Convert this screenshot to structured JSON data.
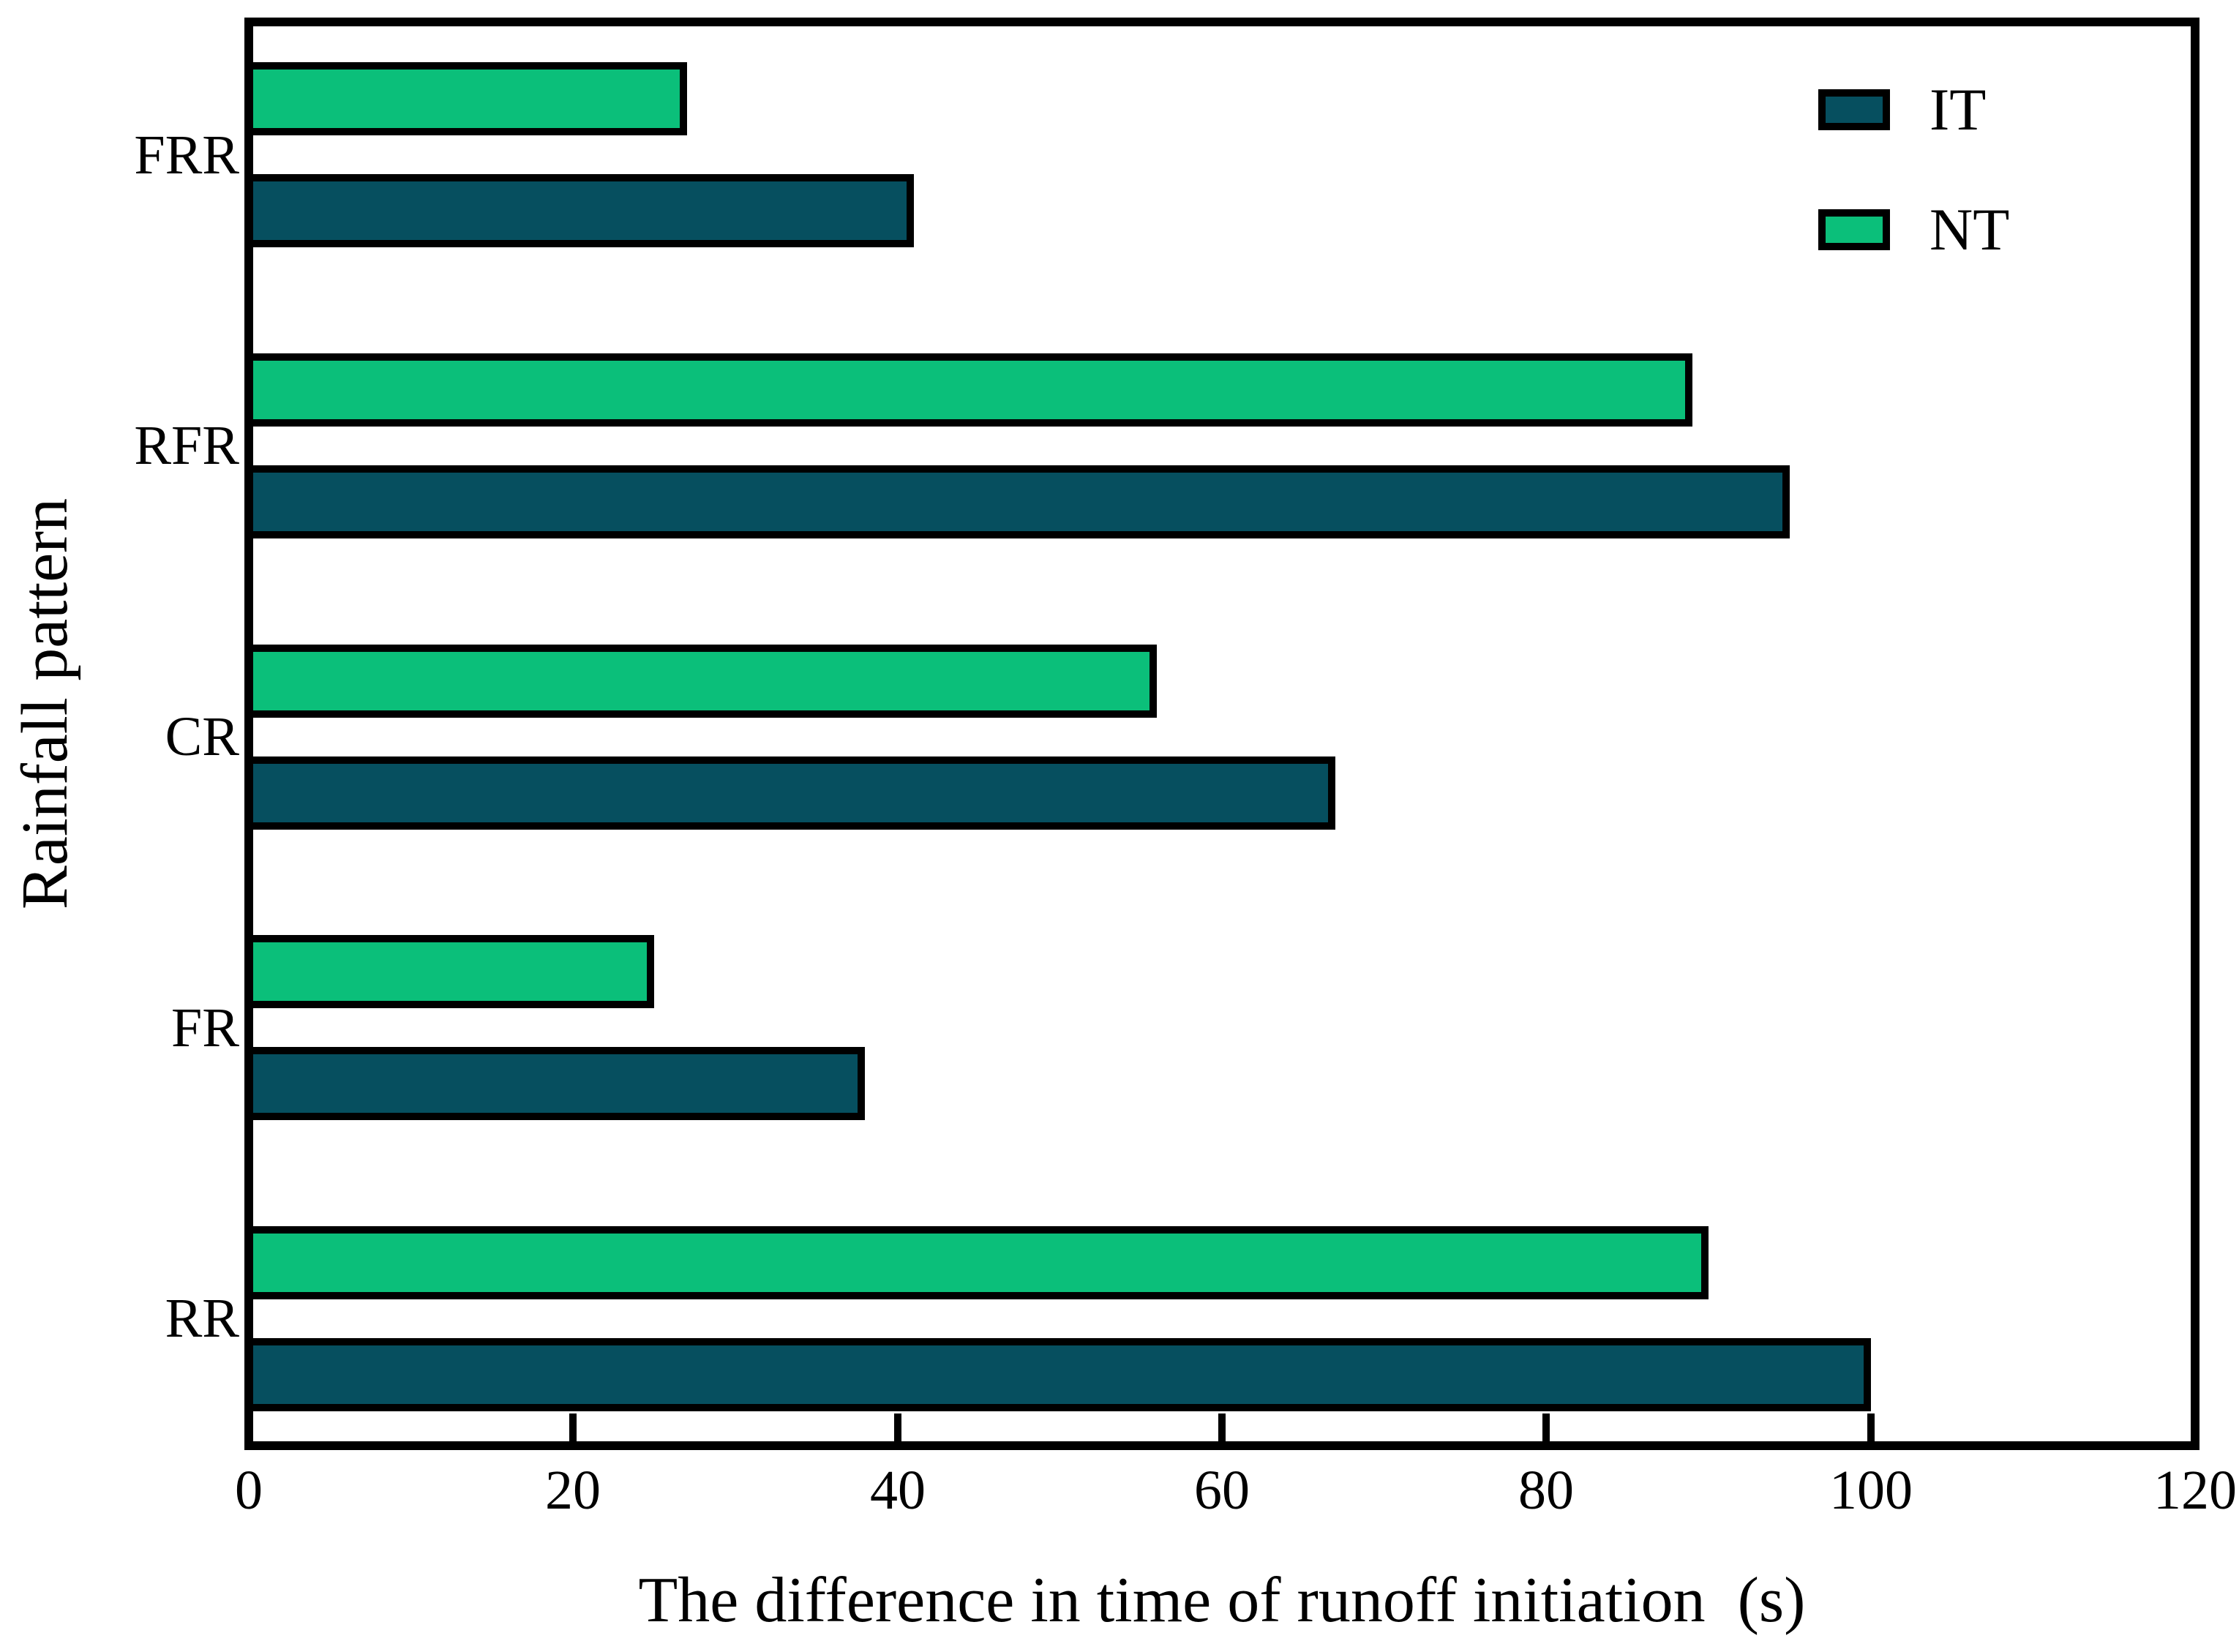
{
  "chart_data": {
    "type": "bar",
    "orientation": "horizontal",
    "xlabel": "The difference in time of runoff initiation  (s)",
    "ylabel": "Rainfall pattern",
    "categories": [
      "FRR",
      "RFR",
      "CR",
      "FR",
      "RR"
    ],
    "series": [
      {
        "name": "IT",
        "color": "#064f5f",
        "values": [
          41,
          95,
          67,
          38,
          100
        ]
      },
      {
        "name": "NT",
        "color": "#0bbf7a",
        "values": [
          27,
          89,
          56,
          25,
          90
        ]
      }
    ],
    "bar_order_within_group_top_to_bottom": [
      "NT",
      "IT"
    ],
    "xlim": [
      0,
      120
    ],
    "xticks": [
      0,
      20,
      40,
      60,
      80,
      100,
      120
    ],
    "grid": false,
    "legend_position": "top-right",
    "bar_outline_color": "#000000"
  },
  "colors": {
    "background": "#ffffff",
    "axis": "#000000"
  }
}
